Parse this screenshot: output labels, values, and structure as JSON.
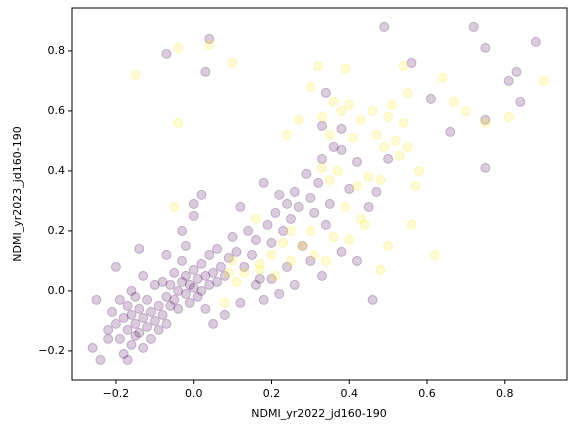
{
  "chart_data": {
    "type": "scatter",
    "xlabel": "NDMI_yr2022_jd160-190",
    "ylabel": "NDMI_yr2023_jd160-190",
    "xlim": [
      -0.313,
      0.96
    ],
    "ylim": [
      -0.297,
      0.943
    ],
    "xticks": [
      {
        "value": -0.2,
        "label": "−0.2"
      },
      {
        "value": 0,
        "label": "0.0"
      },
      0.2,
      0.4,
      0.6,
      0.8
    ],
    "yticks": [
      {
        "value": -0.2,
        "label": "−0.2"
      },
      {
        "value": 0,
        "label": "0.0"
      },
      0.2,
      0.4,
      0.6,
      0.8
    ],
    "series": [
      {
        "color": "#440154",
        "x": [
          -0.25,
          -0.26,
          -0.24,
          -0.22,
          -0.21,
          -0.2,
          -0.19,
          -0.18,
          -0.18,
          -0.17,
          -0.17,
          -0.16,
          -0.16,
          -0.15,
          -0.15,
          -0.14,
          -0.14,
          -0.13,
          -0.13,
          -0.12,
          -0.12,
          -0.11,
          -0.11,
          -0.1,
          -0.1,
          -0.09,
          -0.09,
          -0.08,
          -0.08,
          -0.07,
          -0.07,
          -0.06,
          -0.2,
          -0.16,
          -0.14,
          -0.13,
          -0.22,
          -0.19,
          -0.17,
          -0.15,
          -0.06,
          -0.05,
          -0.05,
          -0.04,
          -0.04,
          -0.03,
          -0.03,
          -0.02,
          -0.02,
          -0.01,
          -0.01,
          0,
          0,
          0.01,
          0.01,
          0.02,
          0.02,
          0.03,
          0.04,
          0.04,
          0.05,
          0.06,
          0.06,
          0.07,
          0.08,
          0.09,
          -0.02,
          -0.03,
          0,
          0.02,
          0,
          0.03,
          0.05,
          -0.07,
          0.1,
          0.11,
          0.12,
          0.13,
          0.14,
          0.15,
          0.16,
          0.17,
          0.18,
          0.19,
          0.2,
          0.21,
          0.22,
          0.23,
          0.24,
          0.25,
          0.26,
          0.27,
          0.28,
          0.29,
          0.3,
          0.31,
          0.32,
          0.33,
          0.34,
          0.35,
          0.36,
          0.38,
          0.4,
          0.2,
          0.22,
          0.24,
          0.26,
          0.3,
          0.33,
          0.38,
          0.42,
          0.46,
          0.12,
          0.08,
          0.16,
          0.18,
          0.49,
          0.72,
          0.75,
          0.88,
          0.83,
          0.81,
          0.61,
          0.56,
          0.75,
          0.75,
          0.84,
          0.66,
          0.04,
          -0.07,
          0.03,
          0.34,
          0.33,
          0.47,
          0.45,
          0.42,
          0.5,
          0.38
        ],
        "values": [
          -0.03,
          -0.19,
          -0.23,
          -0.13,
          -0.07,
          -0.11,
          -0.16,
          -0.09,
          -0.21,
          -0.05,
          -0.13,
          -0.08,
          -0.18,
          -0.11,
          -0.02,
          -0.14,
          -0.06,
          -0.09,
          -0.19,
          -0.12,
          -0.03,
          -0.07,
          -0.16,
          -0.1,
          0.02,
          -0.05,
          -0.13,
          -0.08,
          0.03,
          -0.02,
          -0.11,
          -0.05,
          0.08,
          0,
          0.14,
          0.05,
          -0.16,
          -0.03,
          -0.23,
          -0.15,
          0.02,
          -0.03,
          0.06,
          0,
          -0.06,
          0.03,
          0.1,
          -0.01,
          0.05,
          0.02,
          -0.04,
          0.01,
          0.07,
          -0.02,
          0.04,
          0,
          0.09,
          0.05,
          0.02,
          0.12,
          0.06,
          0.03,
          0.14,
          0.08,
          0.05,
          0.11,
          0.15,
          0.2,
          0.25,
          0.32,
          0.29,
          -0.06,
          -0.11,
          0.12,
          0.18,
          0.13,
          0.28,
          0.08,
          0.2,
          0.12,
          0.17,
          0.04,
          0.36,
          0.22,
          0.16,
          0.26,
          0.32,
          0.2,
          0.29,
          0.24,
          0.33,
          0.28,
          0.15,
          0.39,
          0.31,
          0.26,
          0.36,
          0.44,
          0.22,
          0.29,
          0.48,
          0.54,
          0.34,
          0.04,
          -0.01,
          0.08,
          0.02,
          0.1,
          0.05,
          0.13,
          0.1,
          -0.03,
          -0.04,
          -0.08,
          0.02,
          -0.03,
          0.88,
          0.88,
          0.81,
          0.83,
          0.73,
          0.7,
          0.64,
          0.76,
          0.57,
          0.41,
          0.63,
          0.53,
          0.84,
          0.79,
          0.73,
          0.66,
          0.55,
          0.33,
          0.28,
          0.43,
          0.44,
          0.47
        ]
      },
      {
        "color": "#fde725",
        "x": [
          -0.15,
          -0.04,
          0.04,
          0.1,
          -0.04,
          0.32,
          0.39,
          0.54,
          0.55,
          0.36,
          0.38,
          0.4,
          0.43,
          0.47,
          0.49,
          0.52,
          0.53,
          0.46,
          0.5,
          0.51,
          0.54,
          0.3,
          0.33,
          0.27,
          0.35,
          0.41,
          0.37,
          0.42,
          0.45,
          0.48,
          0.33,
          0.35,
          0.39,
          0.44,
          0.36,
          0.4,
          0.3,
          0.31,
          0.34,
          0.23,
          0.28,
          0.25,
          0.2,
          0.17,
          0.13,
          0.09,
          0.1,
          0.11,
          0.08,
          0.21,
          0.25,
          0.16,
          0.48,
          0.5,
          0.56,
          0.62,
          0.57,
          0.64,
          0.67,
          0.7,
          0.75,
          0.81,
          0.9,
          0.55,
          0.58,
          0.24,
          -0.05,
          0.17,
          0.43
        ],
        "values": [
          0.72,
          0.81,
          0.82,
          0.76,
          0.56,
          0.75,
          0.74,
          0.75,
          0.66,
          0.63,
          0.6,
          0.62,
          0.57,
          0.52,
          0.48,
          0.5,
          0.45,
          0.6,
          0.58,
          0.62,
          0.56,
          0.68,
          0.58,
          0.57,
          0.52,
          0.51,
          0.4,
          0.35,
          0.38,
          0.37,
          0.41,
          0.37,
          0.28,
          0.22,
          0.18,
          0.17,
          0.2,
          0.12,
          0.1,
          0.16,
          0.15,
          0.1,
          0.12,
          0.07,
          0.06,
          0.06,
          0.1,
          0.03,
          -0.04,
          0.05,
          0.2,
          0.24,
          0.07,
          0.15,
          0.22,
          0.12,
          0.35,
          0.71,
          0.63,
          0.6,
          0.56,
          0.58,
          0.7,
          0.48,
          0.4,
          0.52,
          0.28,
          0.09,
          0.24
        ]
      }
    ]
  }
}
